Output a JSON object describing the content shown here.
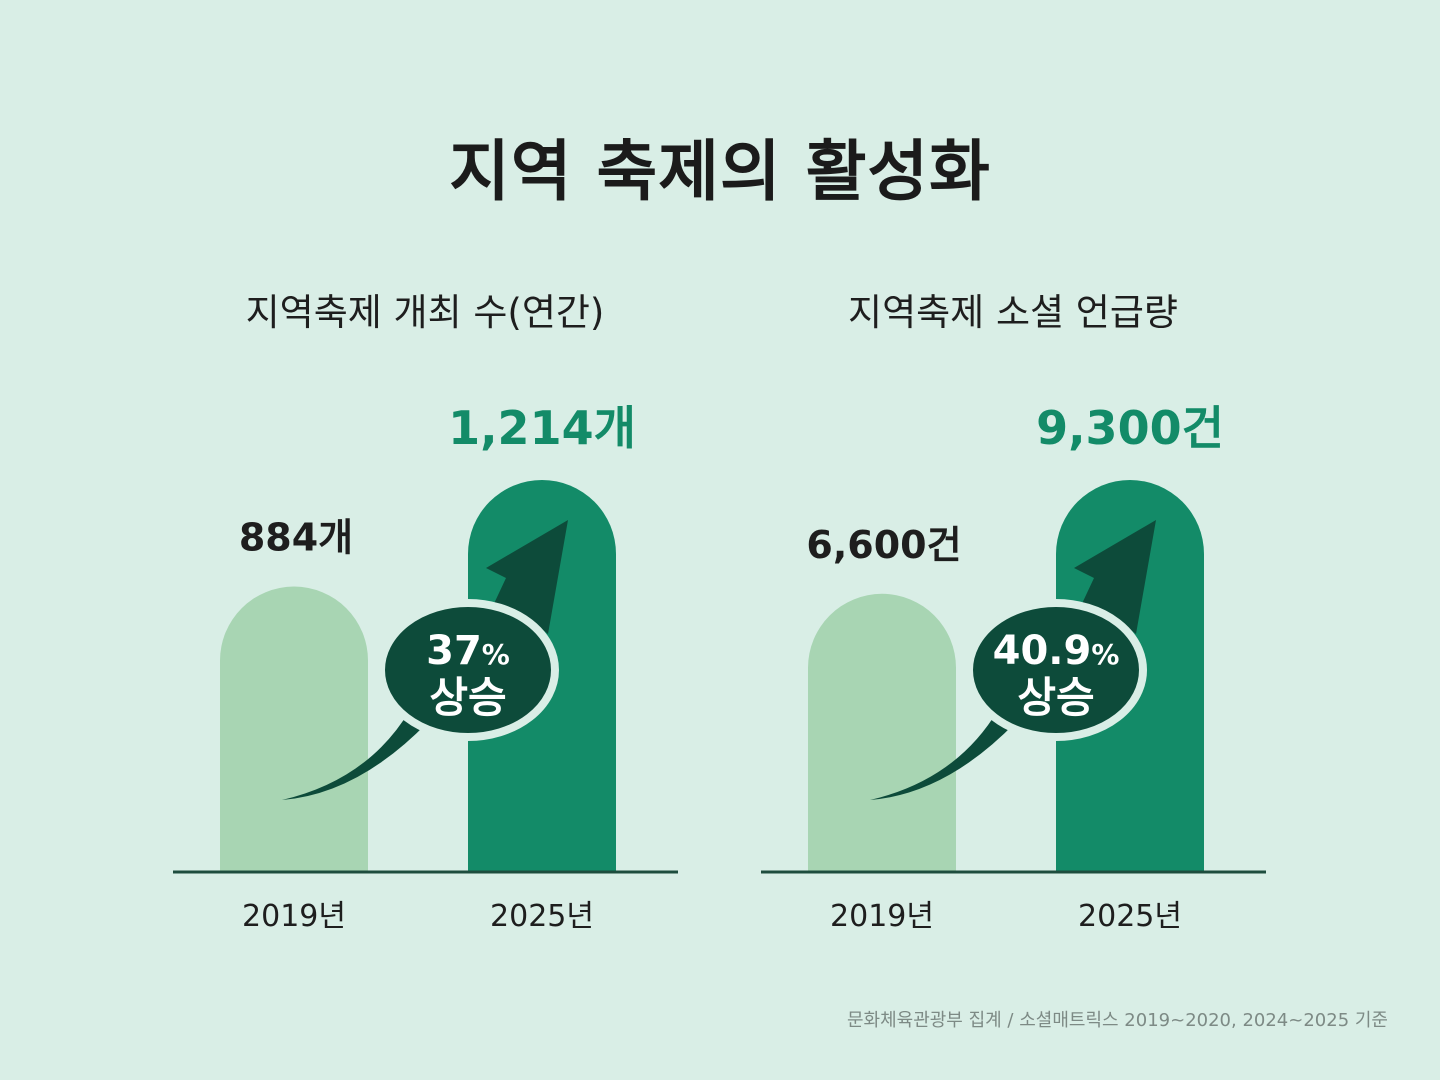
{
  "title": "지역 축제의 활성화",
  "colors": {
    "background": "#d9eee6",
    "bar_2019": "#a8d5b3",
    "bar_2025": "#138b68",
    "bubble": "#0d4b3a",
    "highlight_value": "#138b68",
    "baseline": "#1e4d3e"
  },
  "chart_data": [
    {
      "type": "bar",
      "title": "지역축제 개최 수(연간)",
      "categories": [
        "2019년",
        "2025년"
      ],
      "values": [
        884,
        1214
      ],
      "value_labels": [
        "884개",
        "1,214개"
      ],
      "change_label": {
        "value": "37",
        "unit": "%",
        "text": "상승"
      }
    },
    {
      "type": "bar",
      "title": "지역축제 소셜 언급량",
      "categories": [
        "2019년",
        "2025년"
      ],
      "values": [
        6600,
        9300
      ],
      "value_labels": [
        "6,600건",
        "9,300건"
      ],
      "change_label": {
        "value": "40.9",
        "unit": "%",
        "text": "상승"
      }
    }
  ],
  "source": "문화체육관광부 집계 / 소셜매트릭스 2019~2020, 2024~2025 기준"
}
